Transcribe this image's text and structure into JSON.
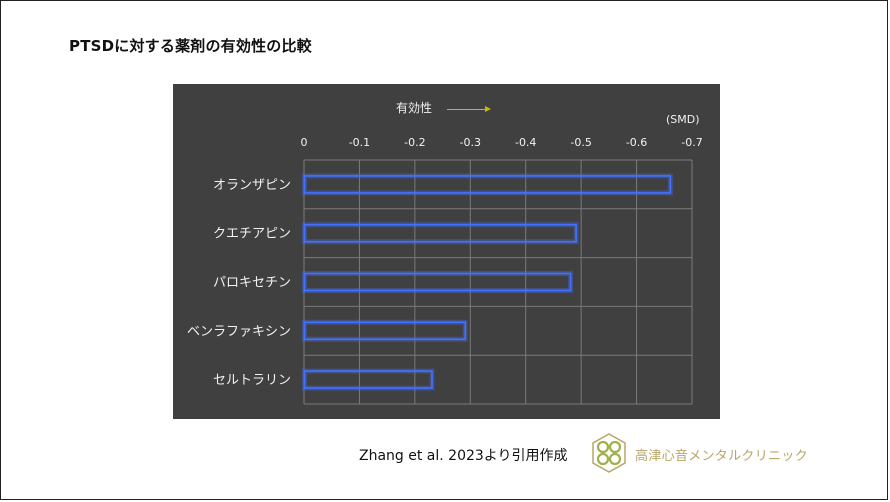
{
  "title": "PTSDに対する薬剤の有効性の比較",
  "effect_label": "有効性",
  "unit_label": "(SMD)",
  "citation": "Zhang et al. 2023より引用作成",
  "clinic_name": "高津心音メンタルクリニック",
  "colors": {
    "panel_bg": "#404040",
    "bar_stroke": "#4472ff",
    "grid": "#7a7a7a",
    "text_light": "#f2f2f2",
    "logo_green": "#9fb14a",
    "logo_gold": "#b8a56a"
  },
  "chart_data": {
    "type": "bar",
    "orientation": "horizontal",
    "categories": [
      "オランザピン",
      "クエチアピン",
      "パロキセチン",
      "ベンラファキシン",
      "セルトラリン"
    ],
    "values": [
      -0.66,
      -0.49,
      -0.48,
      -0.29,
      -0.23
    ],
    "xlim": [
      0,
      -0.7
    ],
    "xticks": [
      0,
      -0.1,
      -0.2,
      -0.3,
      -0.4,
      -0.5,
      -0.6,
      -0.7
    ],
    "xtick_labels": [
      "0",
      "-0.1",
      "-0.2",
      "-0.3",
      "-0.4",
      "-0.5",
      "-0.6",
      "-0.7"
    ],
    "xlabel": "(SMD)",
    "grid": true
  }
}
